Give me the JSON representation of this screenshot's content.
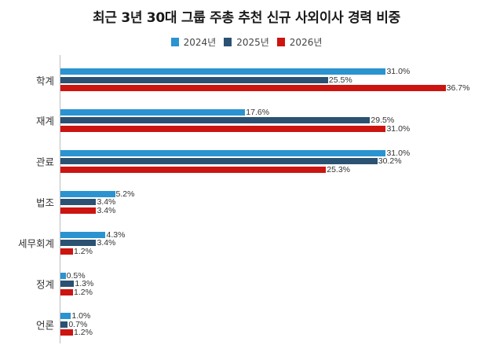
{
  "title": "최근 3년 30대 그룹 주총 추천 신규 사외이사 경력 비중",
  "legend": [
    {
      "label": "2024년",
      "color": "#2a93d0"
    },
    {
      "label": "2025년",
      "color": "#2b5173"
    },
    {
      "label": "2026년",
      "color": "#cc1410"
    }
  ],
  "chart_data": {
    "type": "bar",
    "orientation": "horizontal",
    "title": "최근 3년 30대 그룹 주총 추천 신규 사외이사 경력 비중",
    "xlabel": "",
    "ylabel": "",
    "unit": "%",
    "categories": [
      "학계",
      "재계",
      "관료",
      "법조",
      "세무회계",
      "정계",
      "언론"
    ],
    "series": [
      {
        "name": "2024년",
        "color": "#2a93d0",
        "values": [
          31.0,
          17.6,
          31.0,
          5.2,
          4.3,
          0.5,
          1.0
        ]
      },
      {
        "name": "2025년",
        "color": "#2b5173",
        "values": [
          25.5,
          29.5,
          30.2,
          3.4,
          3.4,
          1.3,
          0.7
        ]
      },
      {
        "name": "2026년",
        "color": "#cc1410",
        "values": [
          36.7,
          31.0,
          25.3,
          3.4,
          1.2,
          1.2,
          1.2
        ]
      }
    ],
    "value_labels": [
      [
        "31.0%",
        "25.5%",
        "36.7%"
      ],
      [
        "17.6%",
        "29.5%",
        "31.0%"
      ],
      [
        "31.0%",
        "30.2%",
        "25.3%"
      ],
      [
        "5.2%",
        "3.4%",
        "3.4%"
      ],
      [
        "4.3%",
        "3.4%",
        "1.2%"
      ],
      [
        "0.5%",
        "1.3%",
        "1.2%"
      ],
      [
        "1.0%",
        "0.7%",
        "1.2%"
      ]
    ],
    "legend_position": "top",
    "grid": false,
    "xlim": [
      0,
      40
    ]
  }
}
